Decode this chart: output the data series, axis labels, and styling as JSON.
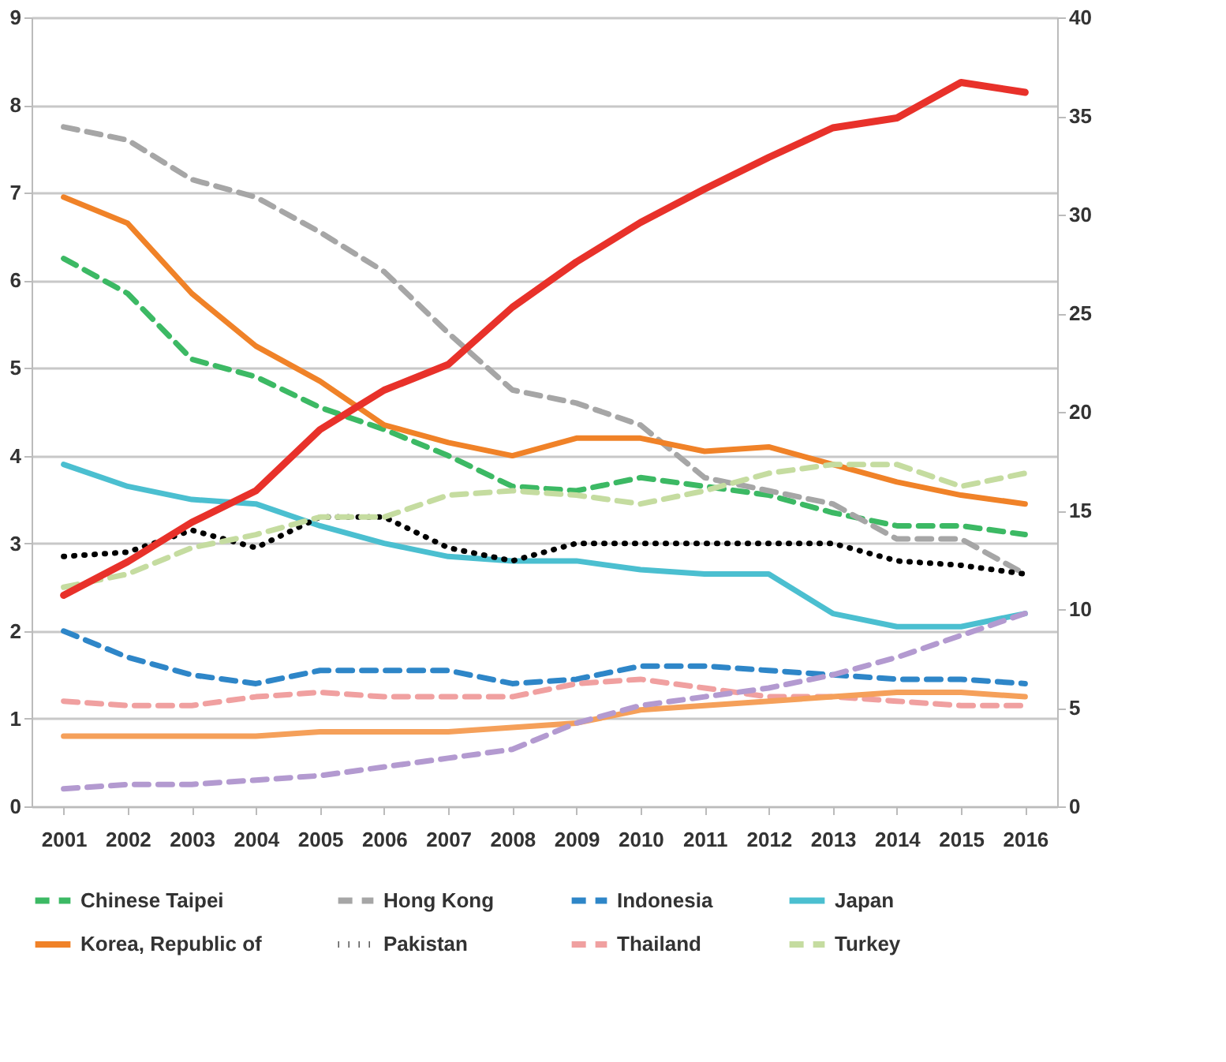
{
  "chart_data": {
    "type": "line",
    "categories": [
      "2001",
      "2002",
      "2003",
      "2004",
      "2005",
      "2006",
      "2007",
      "2008",
      "2009",
      "2010",
      "2011",
      "2012",
      "2013",
      "2014",
      "2015",
      "2016"
    ],
    "ylim": [
      0,
      9
    ],
    "yticks": [
      0,
      1,
      2,
      3,
      4,
      5,
      6,
      7,
      8,
      9
    ],
    "y2lim": [
      0,
      40
    ],
    "y2ticks": [
      0,
      5,
      10,
      15,
      20,
      25,
      30,
      35,
      40
    ],
    "grid": "y",
    "legend": "bottom",
    "series": [
      {
        "name": "Chinese Taipei",
        "color": "#3cb964",
        "line_style": "dashed",
        "values": [
          6.25,
          5.85,
          5.1,
          4.9,
          4.55,
          4.3,
          4.0,
          3.65,
          3.6,
          3.75,
          3.65,
          3.55,
          3.35,
          3.2,
          3.2,
          3.1
        ]
      },
      {
        "name": "Hong Kong",
        "color": "#a6a6a6",
        "line_style": "dashed",
        "values": [
          7.75,
          7.6,
          7.15,
          6.95,
          6.55,
          6.1,
          5.4,
          4.75,
          4.6,
          4.35,
          3.75,
          3.6,
          3.45,
          3.05,
          3.05,
          2.65
        ]
      },
      {
        "name": "Indonesia",
        "color": "#2e86c8",
        "line_style": "dashed",
        "values": [
          2.0,
          1.7,
          1.5,
          1.4,
          1.55,
          1.55,
          1.55,
          1.4,
          1.45,
          1.6,
          1.6,
          1.55,
          1.5,
          1.45,
          1.45,
          1.4
        ]
      },
      {
        "name": "Japan",
        "color": "#4bbfd0",
        "line_style": "solid",
        "values": [
          3.9,
          3.65,
          3.5,
          3.45,
          3.2,
          3.0,
          2.85,
          2.8,
          2.8,
          2.7,
          2.65,
          2.65,
          2.2,
          2.05,
          2.05,
          2.2
        ]
      },
      {
        "name": "Korea, Republic of",
        "color": "#f08228",
        "line_style": "solid",
        "values": [
          6.95,
          6.65,
          5.85,
          5.25,
          4.85,
          4.35,
          4.15,
          4.0,
          4.2,
          4.2,
          4.05,
          4.1,
          3.9,
          3.7,
          3.55,
          3.45
        ]
      },
      {
        "name": "Pakistan",
        "color": "#000000",
        "line_style": "dotted",
        "values": [
          2.85,
          2.9,
          3.15,
          2.95,
          3.3,
          3.3,
          2.95,
          2.8,
          3.0,
          3.0,
          3.0,
          3.0,
          3.0,
          2.8,
          2.75,
          2.65
        ]
      },
      {
        "name": "Thailand",
        "color": "#f0a0a0",
        "line_style": "dashed",
        "values": [
          1.2,
          1.15,
          1.15,
          1.25,
          1.3,
          1.25,
          1.25,
          1.25,
          1.4,
          1.45,
          1.35,
          1.25,
          1.25,
          1.2,
          1.15,
          1.15
        ]
      },
      {
        "name": "Turkey",
        "color": "#c5dca0",
        "line_style": "dashed",
        "values": [
          2.5,
          2.65,
          2.95,
          3.1,
          3.3,
          3.3,
          3.55,
          3.6,
          3.55,
          3.45,
          3.6,
          3.8,
          3.9,
          3.9,
          3.65,
          3.8
        ]
      },
      {
        "color": "#f5a05a",
        "line_style": "solid",
        "values": [
          0.8,
          0.8,
          0.8,
          0.8,
          0.85,
          0.85,
          0.85,
          0.9,
          0.95,
          1.1,
          1.15,
          1.2,
          1.25,
          1.3,
          1.3,
          1.25
        ]
      },
      {
        "color": "#b39ad0",
        "line_style": "dashed",
        "values": [
          0.2,
          0.25,
          0.25,
          0.3,
          0.35,
          0.45,
          0.55,
          0.65,
          0.95,
          1.15,
          1.25,
          1.35,
          1.5,
          1.7,
          1.95,
          2.2
        ]
      },
      {
        "color": "#e8312a",
        "line_style": "solid",
        "axis": "y2",
        "values": [
          10.7,
          12.4,
          14.4,
          16.0,
          19.1,
          21.1,
          22.4,
          25.3,
          27.6,
          29.6,
          31.3,
          32.9,
          34.4,
          34.9,
          36.7,
          36.2
        ]
      }
    ]
  }
}
